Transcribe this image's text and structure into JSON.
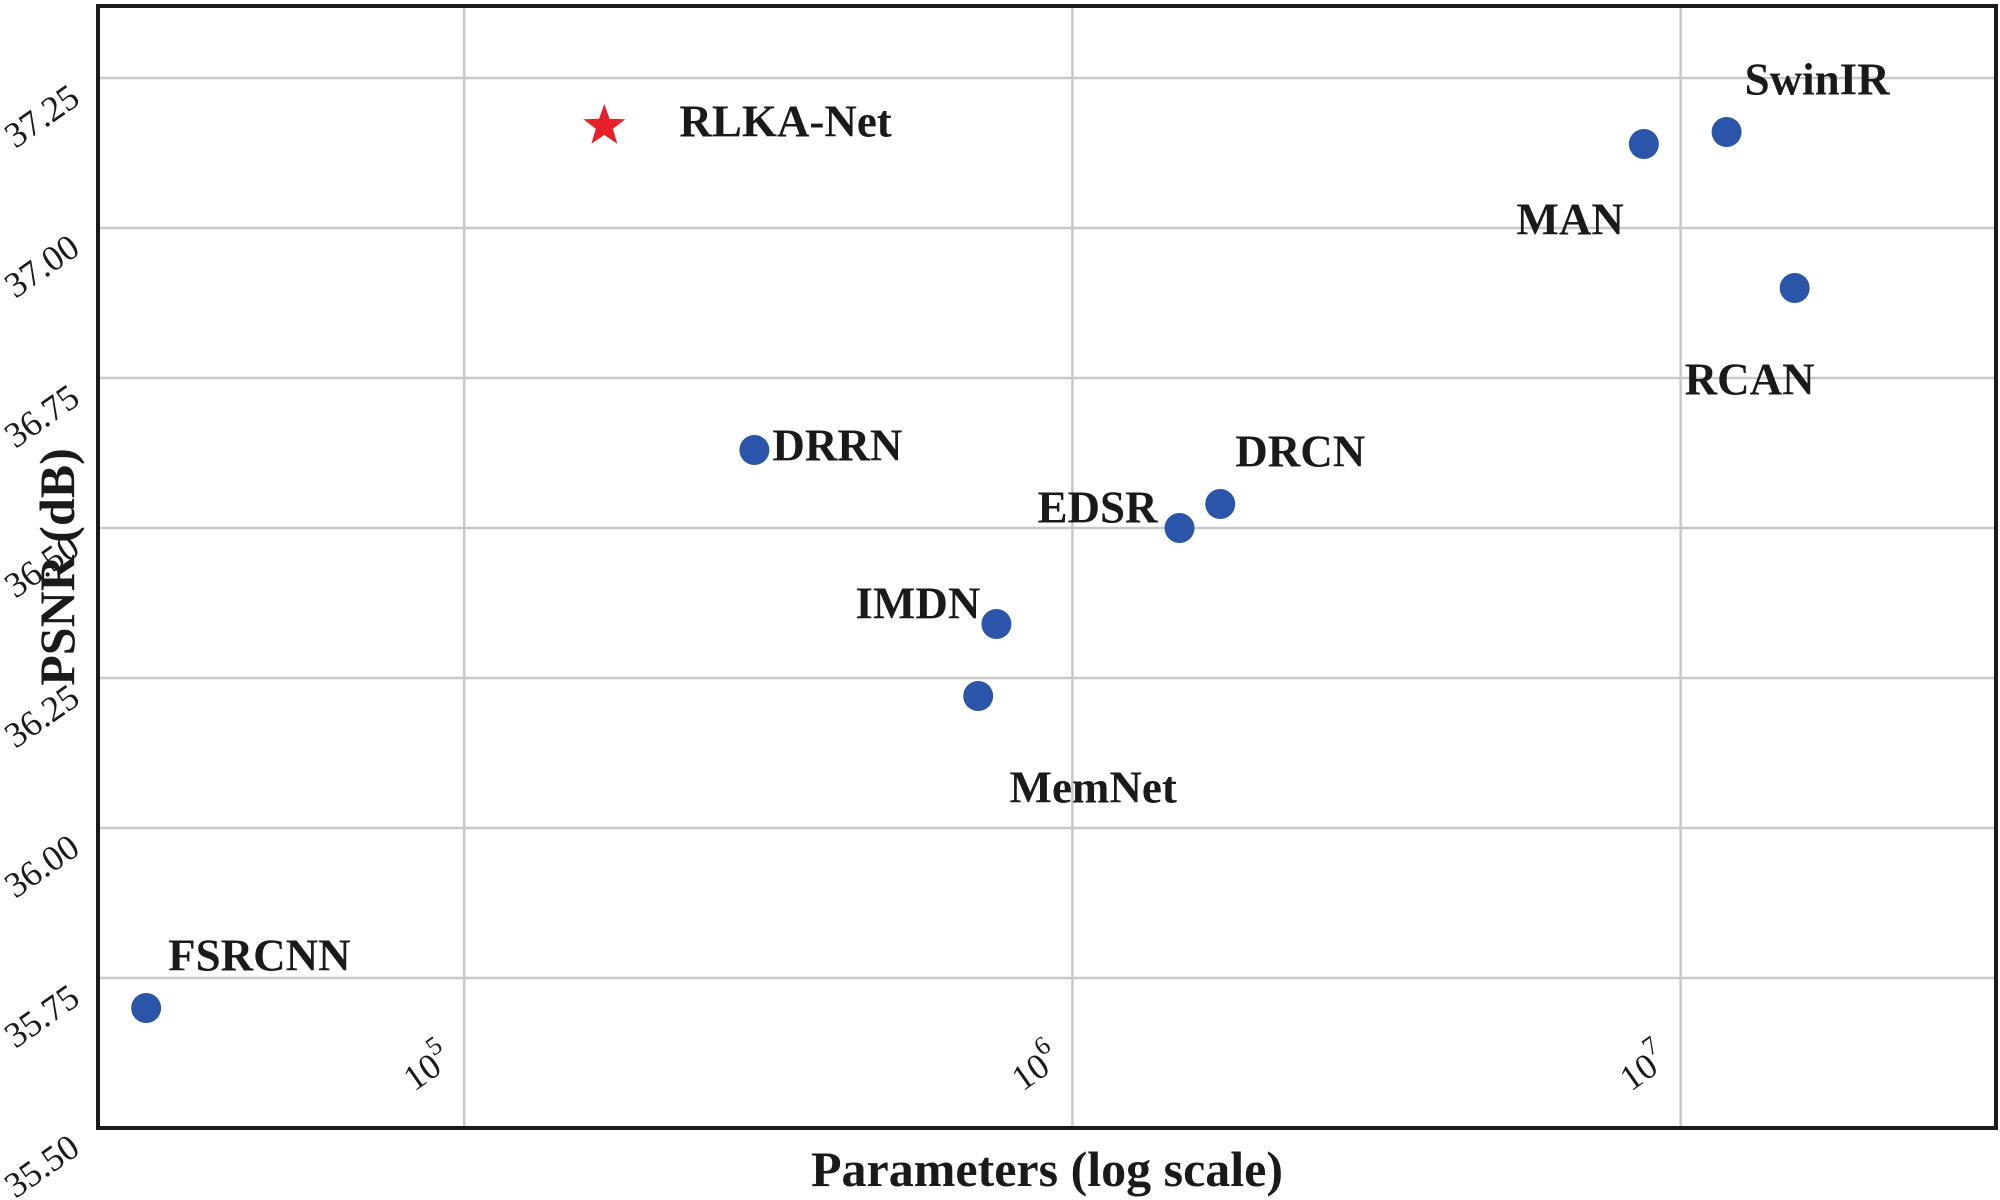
{
  "chart_data": {
    "type": "scatter",
    "xlabel": "Parameters (log scale)",
    "ylabel": "PSNR (dB)",
    "xscale": "log",
    "xlim": [
      25000,
      33000000
    ],
    "ylim": [
      35.5,
      37.37
    ],
    "grid": true,
    "x_ticks": [
      {
        "value": 100000,
        "base": "10",
        "exp": "5"
      },
      {
        "value": 1000000,
        "base": "10",
        "exp": "6"
      },
      {
        "value": 10000000,
        "base": "10",
        "exp": "7"
      }
    ],
    "y_ticks": [
      35.5,
      35.75,
      36.0,
      36.25,
      36.5,
      36.75,
      37.0,
      37.25
    ],
    "y_tick_labels": [
      "35.50",
      "35.75",
      "36.00",
      "36.25",
      "36.50",
      "36.75",
      "37.00",
      "37.25"
    ],
    "highlight_color": "#e8202a",
    "point_color": "#2a55a8",
    "points": [
      {
        "label": "RLKA-Net",
        "x": 170000,
        "y": 37.17,
        "marker": "star",
        "label_pos": "right"
      },
      {
        "label": "FSRCNN",
        "x": 30000,
        "y": 35.7,
        "marker": "circle",
        "label_pos": "upper-right"
      },
      {
        "label": "DRRN",
        "x": 300000,
        "y": 36.63,
        "marker": "circle",
        "label_pos": "right"
      },
      {
        "label": "IMDN",
        "x": 750000,
        "y": 36.34,
        "marker": "circle",
        "label_pos": "upper-left"
      },
      {
        "label": "MemNet",
        "x": 700000,
        "y": 36.22,
        "marker": "circle",
        "label_pos": "below"
      },
      {
        "label": "EDSR",
        "x": 1500000,
        "y": 36.5,
        "marker": "circle",
        "label_pos": "left"
      },
      {
        "label": "DRCN",
        "x": 1750000,
        "y": 36.54,
        "marker": "circle",
        "label_pos": "upper-right"
      },
      {
        "label": "MAN",
        "x": 8700000,
        "y": 37.14,
        "marker": "circle",
        "label_pos": "below-left"
      },
      {
        "label": "SwinIR",
        "x": 11900000,
        "y": 37.16,
        "marker": "circle",
        "label_pos": "upper-right"
      },
      {
        "label": "RCAN",
        "x": 15400000,
        "y": 36.9,
        "marker": "circle",
        "label_pos": "below"
      }
    ]
  }
}
